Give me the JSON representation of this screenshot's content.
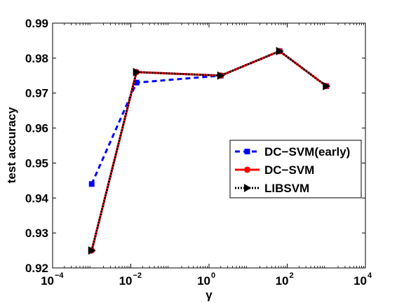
{
  "chart_data": {
    "type": "line",
    "xscale": "log",
    "xlabel": "γ",
    "ylabel": "test accuracy",
    "xlim": [
      0.0001,
      10000
    ],
    "ylim": [
      0.92,
      0.99
    ],
    "x_ticks": [
      {
        "base": "10",
        "exp": "−4"
      },
      {
        "base": "10",
        "exp": "−2"
      },
      {
        "base": "10",
        "exp": "0"
      },
      {
        "base": "10",
        "exp": "2"
      },
      {
        "base": "10",
        "exp": "4"
      }
    ],
    "y_ticks": [
      "0.92",
      "0.93",
      "0.94",
      "0.95",
      "0.96",
      "0.97",
      "0.98",
      "0.99"
    ],
    "legend_position": "right",
    "series": [
      {
        "name": "DC−SVM(early)",
        "color": "#0000ff",
        "style": "dashed",
        "marker": "square",
        "x": [
          0.001,
          0.014,
          2,
          64,
          1000
        ],
        "y": [
          0.944,
          0.973,
          0.975,
          0.982,
          0.972
        ]
      },
      {
        "name": "DC−SVM",
        "color": "#ff0000",
        "style": "solid",
        "marker": "circle",
        "x": [
          0.001,
          0.014,
          2,
          64,
          1000
        ],
        "y": [
          0.925,
          0.976,
          0.975,
          0.982,
          0.972
        ]
      },
      {
        "name": "LIBSVM",
        "color": "#000000",
        "style": "dotted",
        "marker": "triangle-right",
        "x": [
          0.001,
          0.014,
          2,
          64,
          1000
        ],
        "y": [
          0.925,
          0.976,
          0.975,
          0.982,
          0.972
        ]
      }
    ]
  }
}
